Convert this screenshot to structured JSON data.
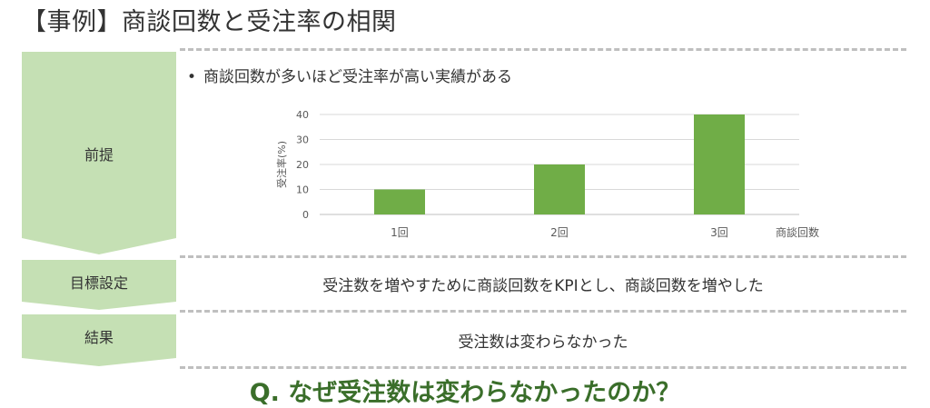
{
  "title": "【事例】商談回数と受注率の相関",
  "rows": [
    {
      "label": "前提"
    },
    {
      "label": "目標設定",
      "text": "受注数を増やすために商談回数をKPIとし、商談回数を増やした"
    },
    {
      "label": "結果",
      "text": "受注数は変わらなかった"
    }
  ],
  "premise": {
    "bullet": "商談回数が多いほど受注率が高い実績がある"
  },
  "question": "Q. なぜ受注数は変わらなかったのか？",
  "colors": {
    "label_fill": "#c5e0b4",
    "bar": "#70ad47",
    "question": "#3a6e2a"
  },
  "chart_data": {
    "type": "bar",
    "categories": [
      "1回",
      "2回",
      "3回"
    ],
    "values": [
      10,
      20,
      40
    ],
    "xlabel": "商談回数",
    "ylabel": "受注率(%)",
    "ylim": [
      0,
      40
    ],
    "yticks": [
      0,
      10,
      20,
      30,
      40
    ],
    "grid": true
  }
}
